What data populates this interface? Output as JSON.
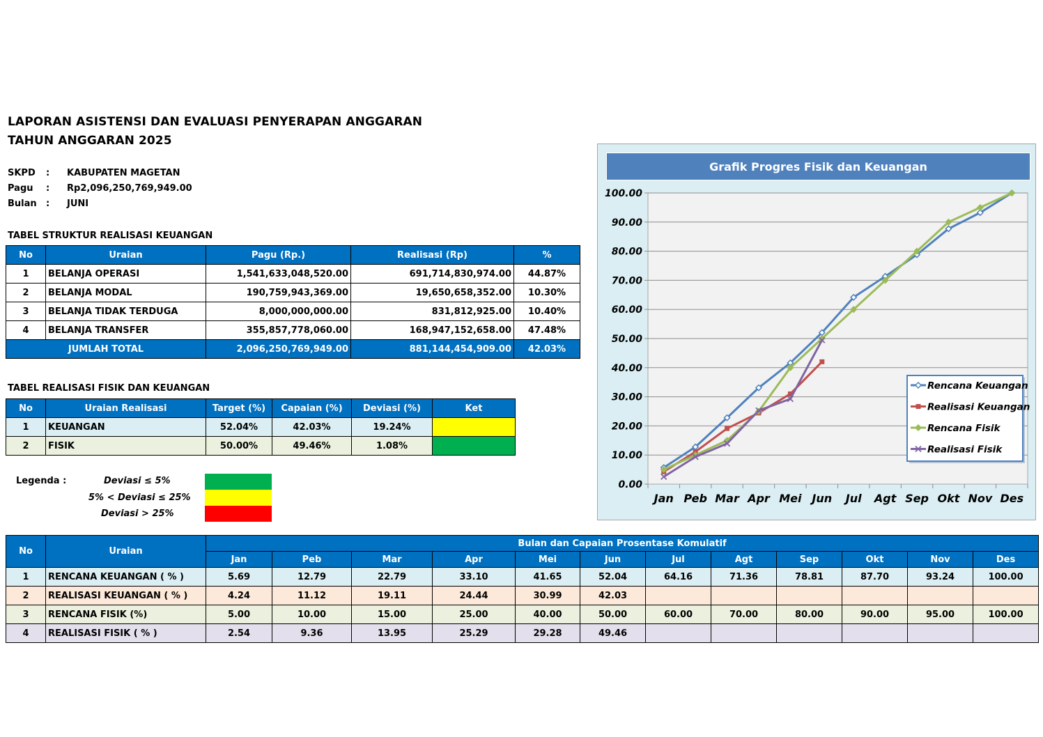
{
  "header": {
    "title_line1": "LAPORAN ASISTENSI DAN EVALUASI PENYERAPAN ANGGARAN",
    "title_line2": "TAHUN ANGGARAN 2025"
  },
  "meta": [
    {
      "key": "SKPD",
      "sep": ":",
      "value": "KABUPATEN MAGETAN"
    },
    {
      "key": "Pagu",
      "sep": ":",
      "value": "Rp2,096,250,769,949.00"
    },
    {
      "key": "Bulan",
      "sep": ":",
      "value": "JUNI"
    }
  ],
  "table1": {
    "heading": "TABEL STRUKTUR REALISASI KEUANGAN",
    "columns": [
      "No",
      "Uraian",
      "Pagu (Rp.)",
      "Realisasi (Rp)",
      "%"
    ],
    "rows": [
      {
        "no": "1",
        "uraian": "BELANJA OPERASI",
        "pagu": "1,541,633,048,520.00",
        "realisasi": "691,714,830,974.00",
        "pct": "44.87%"
      },
      {
        "no": "2",
        "uraian": "BELANJA MODAL",
        "pagu": "190,759,943,369.00",
        "realisasi": "19,650,658,352.00",
        "pct": "10.30%"
      },
      {
        "no": "3",
        "uraian": "BELANJA TIDAK TERDUGA",
        "pagu": "8,000,000,000.00",
        "realisasi": "831,812,925.00",
        "pct": "10.40%"
      },
      {
        "no": "4",
        "uraian": "BELANJA TRANSFER",
        "pagu": "355,857,778,060.00",
        "realisasi": "168,947,152,658.00",
        "pct": "47.48%"
      }
    ],
    "total": {
      "label": "JUMLAH TOTAL",
      "pagu": "2,096,250,769,949.00",
      "realisasi": "881,144,454,909.00",
      "pct": "42.03%"
    }
  },
  "table2": {
    "heading": "TABEL REALISASI FISIK DAN KEUANGAN",
    "columns": [
      "No",
      "Uraian Realisasi",
      "Target (%)",
      "Capaian (%)",
      "Deviasi (%)",
      "Ket"
    ],
    "rows": [
      {
        "no": "1",
        "uraian": "KEUANGAN",
        "target": "52.04%",
        "capaian": "42.03%",
        "deviasi": "19.24%",
        "ket_color": "#ffff00"
      },
      {
        "no": "2",
        "uraian": "FISIK",
        "target": "50.00%",
        "capaian": "49.46%",
        "deviasi": "1.08%",
        "ket_color": "#00b050"
      }
    ]
  },
  "legenda": {
    "label": "Legenda :",
    "items": [
      {
        "text": "Deviasi ≤ 5%",
        "color": "#00b050"
      },
      {
        "text": "5% < Deviasi ≤ 25%",
        "color": "#ffff00"
      },
      {
        "text": "Deviasi > 25%",
        "color": "#ff0000"
      }
    ]
  },
  "table3": {
    "col_no": "No",
    "col_uraian": "Uraian",
    "group_header": "Bulan dan Capaian Prosentase Komulatif",
    "months": [
      "Jan",
      "Peb",
      "Mar",
      "Apr",
      "Mei",
      "Jun",
      "Jul",
      "Agt",
      "Sep",
      "Okt",
      "Nov",
      "Des"
    ],
    "rows": [
      {
        "no": "1",
        "label": "RENCANA KEUANGAN ( % )",
        "values": [
          "5.69",
          "12.79",
          "22.79",
          "33.10",
          "41.65",
          "52.04",
          "64.16",
          "71.36",
          "78.81",
          "87.70",
          "93.24",
          "100.00"
        ]
      },
      {
        "no": "2",
        "label": "REALISASI KEUANGAN ( % )",
        "values": [
          "4.24",
          "11.12",
          "19.11",
          "24.44",
          "30.99",
          "42.03",
          "",
          "",
          "",
          "",
          "",
          ""
        ]
      },
      {
        "no": "3",
        "label": "RENCANA FISIK (%)",
        "values": [
          "5.00",
          "10.00",
          "15.00",
          "25.00",
          "40.00",
          "50.00",
          "60.00",
          "70.00",
          "80.00",
          "90.00",
          "95.00",
          "100.00"
        ]
      },
      {
        "no": "4",
        "label": "REALISASI FISIK ( % )",
        "values": [
          "2.54",
          "9.36",
          "13.95",
          "25.29",
          "29.28",
          "49.46",
          "",
          "",
          "",
          "",
          "",
          ""
        ]
      }
    ]
  },
  "chart_data": {
    "type": "line",
    "title": "Grafik Progres Fisik dan Keuangan",
    "categories": [
      "Jan",
      "Peb",
      "Mar",
      "Apr",
      "Mei",
      "Jun",
      "Jul",
      "Agt",
      "Sep",
      "Okt",
      "Nov",
      "Des"
    ],
    "ylim": [
      0,
      100
    ],
    "yticks": [
      "0.00",
      "10.00",
      "20.00",
      "30.00",
      "40.00",
      "50.00",
      "60.00",
      "70.00",
      "80.00",
      "90.00",
      "100.00"
    ],
    "grid": true,
    "legend_position": "right",
    "series": [
      {
        "name": "Rencana Keuangan",
        "color": "#4f81bd",
        "marker": "diamond-open",
        "values": [
          5.69,
          12.79,
          22.79,
          33.1,
          41.65,
          52.04,
          64.16,
          71.36,
          78.81,
          87.7,
          93.24,
          100.0
        ]
      },
      {
        "name": "Realisasi Keuangan",
        "color": "#c0504d",
        "marker": "square",
        "values": [
          4.24,
          11.12,
          19.11,
          24.44,
          30.99,
          42.03,
          null,
          null,
          null,
          null,
          null,
          null
        ]
      },
      {
        "name": "Rencana Fisik",
        "color": "#9bbb59",
        "marker": "diamond",
        "values": [
          5.0,
          10.0,
          15.0,
          25.0,
          40.0,
          50.0,
          60.0,
          70.0,
          80.0,
          90.0,
          95.0,
          100.0
        ]
      },
      {
        "name": "Realisasi Fisik",
        "color": "#8064a2",
        "marker": "x",
        "values": [
          2.54,
          9.36,
          13.95,
          25.29,
          29.28,
          49.46,
          null,
          null,
          null,
          null,
          null,
          null
        ]
      }
    ]
  }
}
